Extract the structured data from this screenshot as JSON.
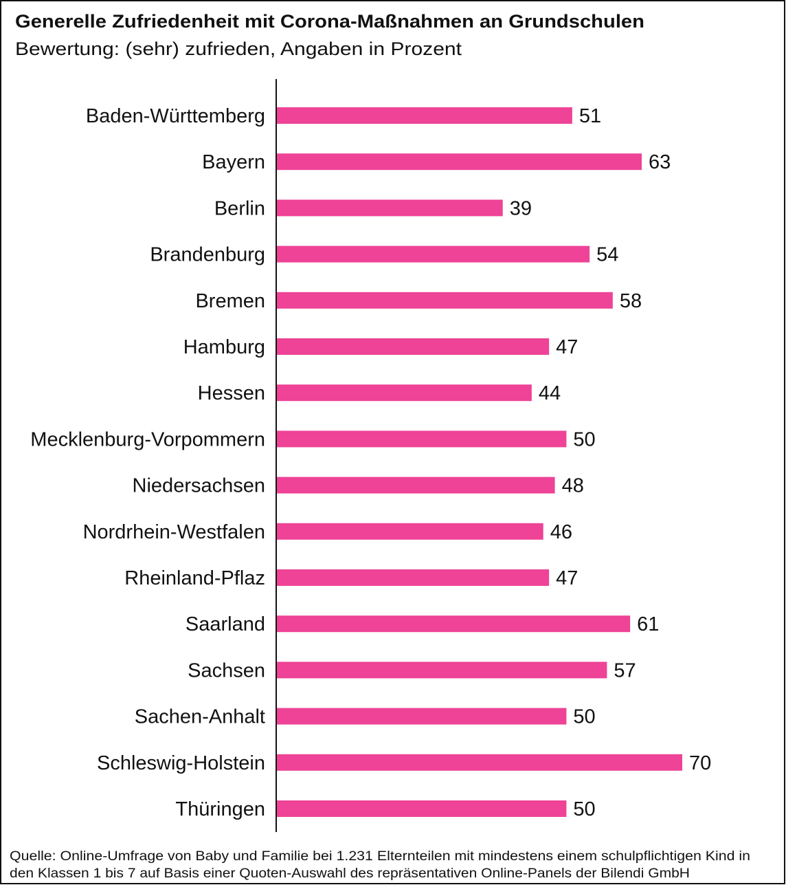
{
  "chart_data": {
    "type": "bar",
    "orientation": "horizontal",
    "title": "Generelle Zufriedenheit mit Corona-Maßnahmen an Grundschulen",
    "subtitle": "Bewertung: (sehr) zufrieden, Angaben in Prozent",
    "categories": [
      "Baden-Württemberg",
      "Bayern",
      "Berlin",
      "Brandenburg",
      "Bremen",
      "Hamburg",
      "Hessen",
      "Mecklenburg-Vorpommern",
      "Niedersachsen",
      "Nordrhein-Westfalen",
      "Rheinland-Pflaz",
      "Saarland",
      "Sachsen",
      "Sachen-Anhalt",
      "Schleswig-Holstein",
      "Thüringen"
    ],
    "values": [
      51,
      63,
      39,
      54,
      58,
      47,
      44,
      50,
      48,
      46,
      47,
      61,
      57,
      50,
      70,
      50
    ],
    "xlim": [
      0,
      70
    ],
    "grid": false,
    "bar_color": "#EE4396",
    "source": [
      "Quelle: Online-Umfrage von Baby und Familie bei 1.231 Elternteilen mit mindestens einem schulpflichtigen Kind in",
      "den Klassen 1 bis 7 auf Basis einer Quoten-Auswahl des repräsentativen Online-Panels der Bilendi GmbH"
    ]
  }
}
